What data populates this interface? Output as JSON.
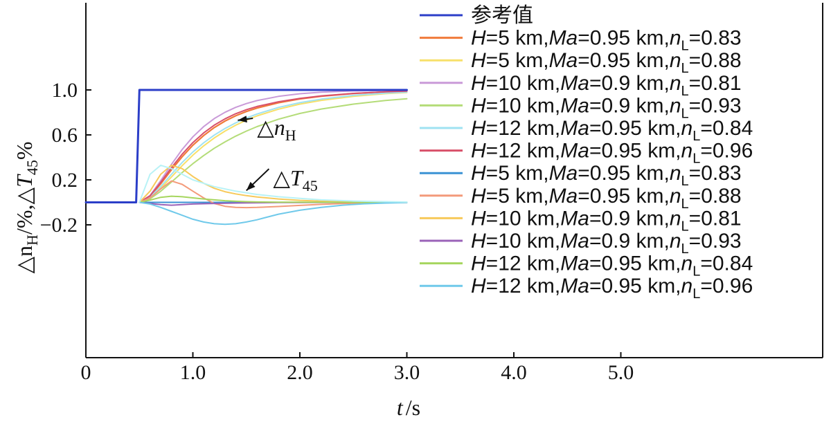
{
  "chart_data": {
    "type": "line",
    "xlabel": {
      "var": "t",
      "unit": "/s"
    },
    "ylabel": {
      "var1": "△n",
      "sub1": "H",
      "mid": "/%,△",
      "var2": "T",
      "sub2": "45",
      "end": "%"
    },
    "xlim": [
      0,
      6.6
    ],
    "ylim": [
      -0.2,
      1.4
    ],
    "x_ticks": [
      {
        "v": 0,
        "label": "0"
      },
      {
        "v": 1,
        "label": "1.0"
      },
      {
        "v": 2,
        "label": "2.0"
      },
      {
        "v": 3,
        "label": "3.0"
      },
      {
        "v": 4,
        "label": "4.0"
      },
      {
        "v": 5,
        "label": "5.0"
      }
    ],
    "y_ticks": [
      {
        "v": -0.2,
        "label": "−0.2"
      },
      {
        "v": 0.2,
        "label": "0.2"
      },
      {
        "v": 0.6,
        "label": "0.6"
      },
      {
        "v": 1.0,
        "label": "1.0"
      }
    ],
    "grid": false,
    "legend_position": "right",
    "annotations": [
      {
        "text": "△n",
        "sub": "H",
        "x": 1.6,
        "y": 0.6,
        "arrow_to": [
          1.42,
          0.73
        ]
      },
      {
        "text": "△T",
        "sub": "45",
        "x": 1.75,
        "y": 0.15,
        "arrow_to": [
          1.5,
          0.105
        ]
      }
    ],
    "series": [
      {
        "name": "参考值",
        "color": "#2b3ec8",
        "width": 3,
        "x": [
          0,
          0.47,
          0.47,
          0.5,
          3.0
        ],
        "y": [
          0,
          0,
          0,
          1.0,
          1.0
        ]
      },
      {
        "name": {
          "H": "5",
          "Ma": "0.95",
          "nL": "0.83"
        },
        "color": "#f07a3a",
        "width": 2.2,
        "x": [
          0.5,
          0.6,
          0.7,
          0.8,
          0.9,
          1.0,
          1.1,
          1.2,
          1.3,
          1.4,
          1.5,
          1.6,
          1.8,
          2.0,
          2.2,
          2.5,
          2.8,
          3.0
        ],
        "y": [
          0,
          0.054,
          0.165,
          0.289,
          0.406,
          0.508,
          0.594,
          0.665,
          0.723,
          0.77,
          0.808,
          0.839,
          0.886,
          0.92,
          0.944,
          0.968,
          0.983,
          0.99
        ]
      },
      {
        "name": {
          "H": "5",
          "Ma": "0.95",
          "nL": "0.88"
        },
        "color": "#f7e06a",
        "width": 2,
        "x": [
          0.5,
          0.6,
          0.7,
          0.8,
          0.9,
          1.0,
          1.1,
          1.2,
          1.3,
          1.4,
          1.5,
          1.6,
          1.8,
          2.0,
          2.2,
          2.5,
          2.8,
          3.0
        ],
        "y": [
          0,
          0.039,
          0.125,
          0.226,
          0.327,
          0.42,
          0.502,
          0.573,
          0.634,
          0.686,
          0.731,
          0.769,
          0.829,
          0.874,
          0.907,
          0.943,
          0.967,
          0.977
        ]
      },
      {
        "name": {
          "H": "10",
          "Ma": "0.9",
          "nL": "0.81"
        },
        "color": "#c99ad8",
        "width": 2,
        "x": [
          0.5,
          0.6,
          0.7,
          0.8,
          0.9,
          1.0,
          1.1,
          1.2,
          1.3,
          1.4,
          1.5,
          1.6,
          1.8,
          2.0,
          2.2,
          2.5,
          2.8,
          3.0
        ],
        "y": [
          0,
          0.061,
          0.193,
          0.338,
          0.471,
          0.583,
          0.673,
          0.745,
          0.801,
          0.845,
          0.879,
          0.905,
          0.943,
          0.966,
          0.98,
          0.991,
          0.996,
          0.998
        ]
      },
      {
        "name": {
          "H": "10",
          "Ma": "0.9",
          "nL": "0.93"
        },
        "color": "#b4dc78",
        "width": 2,
        "x": [
          0.5,
          0.6,
          0.7,
          0.8,
          0.9,
          1.0,
          1.1,
          1.2,
          1.3,
          1.4,
          1.5,
          1.6,
          1.8,
          2.0,
          2.2,
          2.5,
          2.8,
          3.0
        ],
        "y": [
          0,
          0.031,
          0.099,
          0.181,
          0.265,
          0.344,
          0.416,
          0.481,
          0.538,
          0.589,
          0.634,
          0.674,
          0.74,
          0.791,
          0.83,
          0.874,
          0.906,
          0.921
        ]
      },
      {
        "name": {
          "H": "12",
          "Ma": "0.95",
          "nL": "0.84"
        },
        "color": "#9fe2f2",
        "width": 2,
        "x": [
          0.5,
          0.6,
          0.7,
          0.8,
          0.9,
          1.0,
          1.1,
          1.2,
          1.3,
          1.4,
          1.5,
          1.6,
          1.8,
          2.0,
          2.2,
          2.5,
          2.8,
          3.0
        ],
        "y": [
          0,
          0.046,
          0.141,
          0.25,
          0.355,
          0.448,
          0.529,
          0.598,
          0.657,
          0.707,
          0.75,
          0.786,
          0.844,
          0.887,
          0.918,
          0.952,
          0.972,
          0.981
        ]
      },
      {
        "name": {
          "H": "12",
          "Ma": "0.95",
          "nL": "0.96"
        },
        "color": "#d8506a",
        "width": 2,
        "x": [
          0.5,
          0.6,
          0.7,
          0.8,
          0.9,
          1.0,
          1.1,
          1.2,
          1.3,
          1.4,
          1.5,
          1.6,
          1.8,
          2.0,
          2.2,
          2.5,
          2.8,
          3.0
        ],
        "y": [
          0,
          0.058,
          0.177,
          0.308,
          0.429,
          0.532,
          0.617,
          0.687,
          0.743,
          0.788,
          0.824,
          0.853,
          0.895,
          0.925,
          0.947,
          0.969,
          0.983,
          0.989
        ]
      },
      {
        "name": {
          "H": "5",
          "Ma": "0.95",
          "nL": "0.83"
        },
        "color": "#3a92d4",
        "width": 2,
        "x": [
          0.5,
          0.6,
          0.8,
          1.0,
          1.5,
          2.0,
          2.5,
          3.0
        ],
        "y": [
          0,
          0,
          0,
          0,
          0,
          0,
          0,
          0
        ]
      },
      {
        "name": {
          "H": "5",
          "Ma": "0.95",
          "nL": "0.88"
        },
        "color": "#f39a7a",
        "width": 2,
        "x": [
          0.5,
          0.6,
          0.7,
          0.8,
          0.9,
          1.0,
          1.1,
          1.2,
          1.3,
          1.4,
          1.5,
          1.6,
          1.8,
          2.0,
          2.2,
          2.4,
          2.6,
          2.8,
          3.0
        ],
        "y": [
          0,
          0.04,
          0.12,
          0.19,
          0.16,
          0.1,
          0.04,
          -0.01,
          -0.035,
          -0.045,
          -0.047,
          -0.045,
          -0.037,
          -0.027,
          -0.018,
          -0.011,
          -0.006,
          -0.003,
          -0.001
        ]
      },
      {
        "name": {
          "H": "10",
          "Ma": "0.9",
          "nL": "0.81"
        },
        "color": "#f7c95a",
        "width": 2,
        "x": [
          0.5,
          0.6,
          0.7,
          0.8,
          0.9,
          1.0,
          1.1,
          1.2,
          1.3,
          1.4,
          1.5,
          1.6,
          1.8,
          2.0,
          2.2,
          2.4,
          2.6,
          2.8,
          3.0
        ],
        "y": [
          0,
          0.1,
          0.25,
          0.33,
          0.3,
          0.23,
          0.17,
          0.125,
          0.095,
          0.075,
          0.06,
          0.048,
          0.03,
          0.018,
          0.011,
          0.007,
          0.004,
          0.002,
          0.001
        ]
      },
      {
        "name": {
          "H": "10",
          "Ma": "0.9",
          "nL": "0.93"
        },
        "color": "#9a62b8",
        "width": 2,
        "x": [
          0.5,
          0.6,
          0.7,
          0.8,
          0.9,
          1.0,
          1.2,
          1.4,
          1.6,
          1.8,
          2.0,
          2.5,
          3.0
        ],
        "y": [
          0,
          -0.01,
          -0.02,
          -0.025,
          -0.02,
          -0.015,
          -0.01,
          -0.006,
          -0.004,
          -0.002,
          -0.001,
          0,
          0
        ]
      },
      {
        "name": {
          "H": "12",
          "Ma": "0.95",
          "nL": "0.84"
        },
        "color": "#a6d65e",
        "width": 2,
        "x": [
          0.5,
          0.6,
          0.7,
          0.8,
          0.9,
          1.0,
          1.1,
          1.2,
          1.3,
          1.4,
          1.5,
          1.6,
          1.8,
          2.0,
          2.5,
          3.0
        ],
        "y": [
          0,
          0.02,
          0.045,
          0.055,
          0.05,
          0.04,
          0.03,
          0.022,
          0.015,
          0.01,
          0.006,
          0.004,
          0.002,
          0.001,
          0,
          0
        ]
      },
      {
        "name": {
          "H": "12",
          "Ma": "0.95",
          "nL": "0.96"
        },
        "color": "#6fc9ea",
        "width": 2,
        "x": [
          0.5,
          0.6,
          0.7,
          0.8,
          0.9,
          1.0,
          1.1,
          1.2,
          1.3,
          1.4,
          1.5,
          1.6,
          1.7,
          1.8,
          2.0,
          2.2,
          2.4,
          2.6,
          2.8,
          3.0
        ],
        "y": [
          0,
          -0.015,
          -0.045,
          -0.08,
          -0.115,
          -0.15,
          -0.175,
          -0.19,
          -0.195,
          -0.19,
          -0.175,
          -0.155,
          -0.13,
          -0.105,
          -0.07,
          -0.045,
          -0.025,
          -0.013,
          -0.006,
          -0.002
        ]
      },
      {
        "name": "",
        "color": "#b8f2f6",
        "width": 2,
        "x": [
          0.5,
          0.6,
          0.7,
          0.8,
          0.9,
          1.0,
          1.2,
          1.4,
          1.6,
          1.8,
          2.0,
          2.2,
          2.5,
          2.8,
          3.0
        ],
        "y": [
          0,
          0.25,
          0.33,
          0.3,
          0.25,
          0.2,
          0.14,
          0.1,
          0.07,
          0.05,
          0.035,
          0.022,
          0.012,
          0.006,
          0.003
        ]
      }
    ]
  }
}
